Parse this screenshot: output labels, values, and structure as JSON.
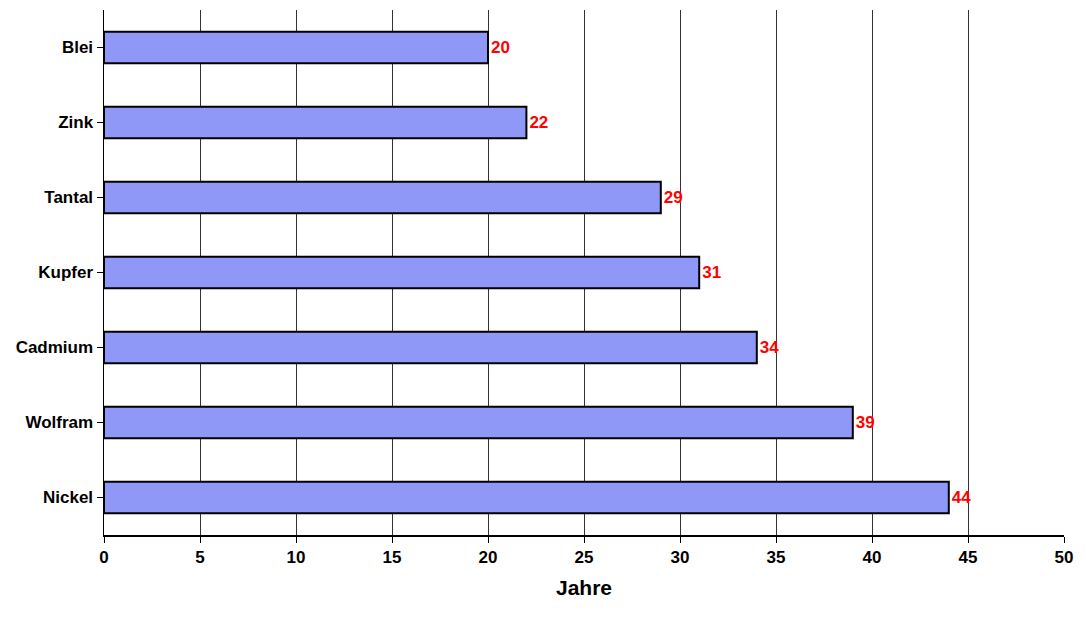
{
  "chart_data": {
    "type": "bar",
    "orientation": "horizontal",
    "categories": [
      "Blei",
      "Zink",
      "Tantal",
      "Kupfer",
      "Cadmium",
      "Wolfram",
      "Nickel"
    ],
    "values": [
      20,
      22,
      29,
      31,
      34,
      39,
      44
    ],
    "color": "#8f97f7",
    "x_label": "Jahre",
    "xlim": [
      0,
      50
    ],
    "xticks": [
      0,
      5,
      10,
      15,
      20,
      25,
      30,
      35,
      40,
      45,
      50
    ],
    "grid": true,
    "data_labels": true
  }
}
